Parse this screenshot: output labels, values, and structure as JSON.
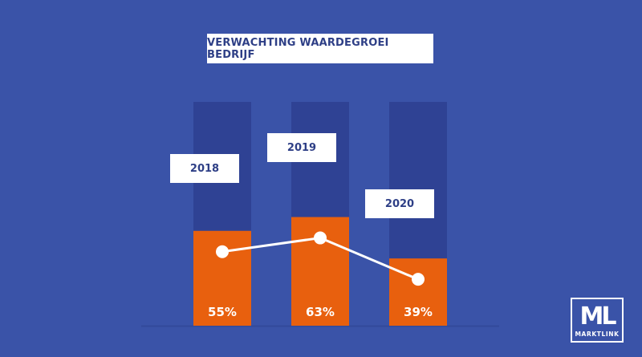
{
  "chart_data": {
    "type": "bar",
    "title": "VERWACHTING WAARDEGROEI BEDRIJF",
    "categories": [
      "2018",
      "2019",
      "2020"
    ],
    "values": [
      55,
      63,
      39
    ],
    "value_labels": [
      "55%",
      "63%",
      "39%"
    ],
    "ylim": [
      0,
      100
    ],
    "overlay_line": true,
    "grid": false,
    "legend": "none"
  },
  "colors": {
    "background": "#3a53a8",
    "bar_track": "#2f4294",
    "bar_fill": "#e8600e",
    "line": "#ffffff",
    "label_box": "#ffffff",
    "label_text": "#2e3f86"
  },
  "logo": {
    "mark": "ML",
    "text": "MARKTLINK"
  }
}
